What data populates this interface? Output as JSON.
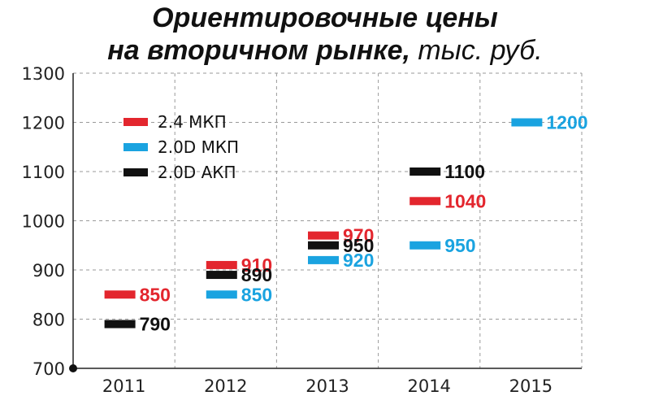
{
  "title": {
    "line1": "Ориентировочные цены",
    "line2_bold": "на вторичном рынке,",
    "line2_unit": " тыс. руб."
  },
  "chart_data": {
    "type": "scatter",
    "x": [
      "2011",
      "2012",
      "2013",
      "2014",
      "2015"
    ],
    "ylim": [
      700,
      1300
    ],
    "yticks": [
      700,
      800,
      900,
      1000,
      1100,
      1200,
      1300
    ],
    "grid": true,
    "legend_position": "top-left",
    "series": [
      {
        "name": "2.4 МКП",
        "color": "#e3262e",
        "values": [
          850,
          910,
          970,
          1040,
          null
        ]
      },
      {
        "name": "2.0D МКП",
        "color": "#1aa3e0",
        "values": [
          null,
          850,
          920,
          950,
          1200
        ]
      },
      {
        "name": "2.0D АКП",
        "color": "#111111",
        "values": [
          790,
          890,
          950,
          1100,
          null
        ]
      }
    ]
  }
}
